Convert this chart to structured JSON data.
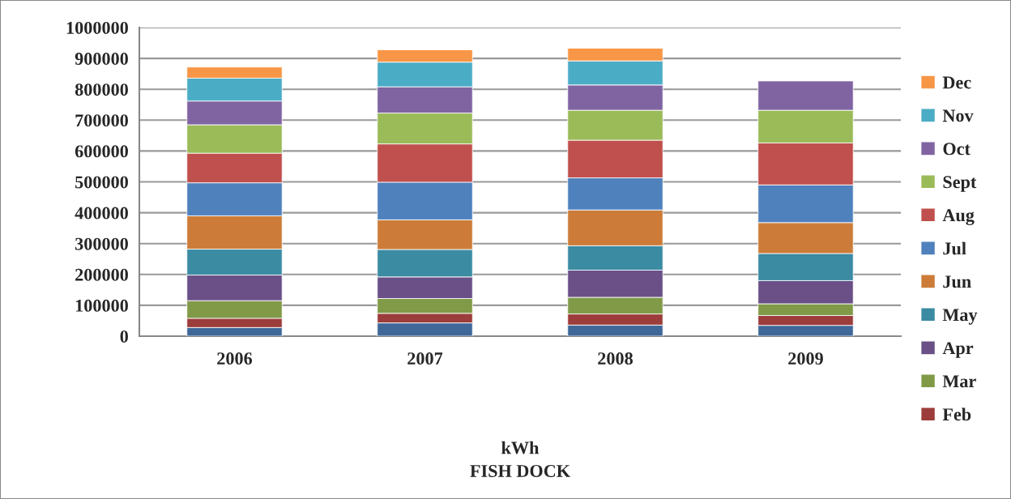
{
  "chart_data": {
    "type": "bar",
    "stacked": true,
    "xlabel": "kWh",
    "annotations": [
      "FISH DOCK"
    ],
    "categories": [
      "2006",
      "2007",
      "2008",
      "2009"
    ],
    "series": [
      {
        "color": "#3f6899",
        "values": [
          28000,
          43000,
          36000,
          35000
        ]
      },
      {
        "name": "Feb",
        "color": "#9c3d3b",
        "values": [
          30000,
          31000,
          36000,
          32000
        ]
      },
      {
        "name": "Mar",
        "color": "#809a48",
        "values": [
          57000,
          48000,
          54000,
          38000
        ]
      },
      {
        "name": "Apr",
        "color": "#6a5087",
        "values": [
          83000,
          70000,
          88000,
          75000
        ]
      },
      {
        "name": "May",
        "color": "#3b8ba3",
        "values": [
          84000,
          89000,
          79000,
          88000
        ]
      },
      {
        "name": "Jun",
        "color": "#cc7c38",
        "values": [
          108000,
          96000,
          116000,
          100000
        ]
      },
      {
        "name": "Jul",
        "color": "#4f81bd",
        "values": [
          107000,
          122000,
          104000,
          122000
        ]
      },
      {
        "name": "Aug",
        "color": "#c0504d",
        "values": [
          96000,
          124000,
          122000,
          136000
        ]
      },
      {
        "name": "Sept",
        "color": "#9bbb59",
        "values": [
          92000,
          100000,
          97000,
          106000
        ]
      },
      {
        "name": "Oct",
        "color": "#8064a2",
        "values": [
          77000,
          85000,
          82000,
          95000
        ]
      },
      {
        "name": "Nov",
        "color": "#4bacc6",
        "values": [
          74000,
          80000,
          78000,
          null
        ]
      },
      {
        "name": "Dec",
        "color": "#f79646",
        "values": [
          36000,
          40000,
          41000,
          null
        ]
      }
    ],
    "ylim": [
      0,
      1000000
    ],
    "yticks": [
      0,
      100000,
      200000,
      300000,
      400000,
      500000,
      600000,
      700000,
      800000,
      900000,
      1000000
    ],
    "grid": "y",
    "legend": "right"
  }
}
